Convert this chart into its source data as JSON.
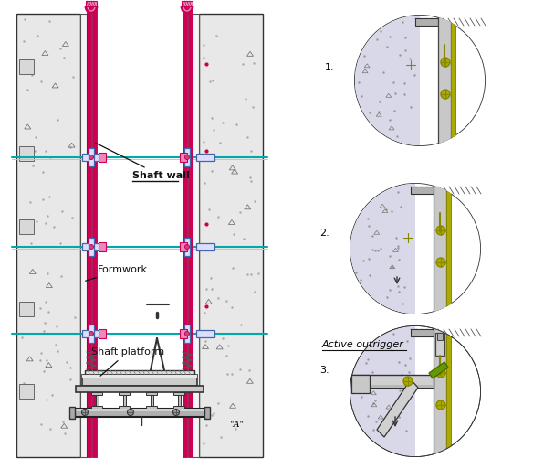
{
  "figsize": [
    5.84,
    5.13
  ],
  "dpi": 100,
  "bg_color": "#ffffff",
  "magenta": "#cc0055",
  "magenta_light": "#ee88bb",
  "cyan": "#00aaaa",
  "cyan_light": "#88dddd",
  "blue": "#4466cc",
  "pink_light": "#ffaacc",
  "green": "#669900",
  "gold": "#aaaa00",
  "gold_dark": "#888800",
  "gray_wall": "#e0e0e0",
  "gray_form": "#f0f0f0",
  "gray_dark": "#444444",
  "gray_med": "#888888",
  "gray_light": "#cccccc",
  "gray_platform": "#bbbbbb",
  "black": "#111111",
  "shaft_wall_label": "Shaft wall",
  "formwork_label": "Formwork",
  "shaft_platform_label": "Shaft platform",
  "active_outrigger_label": "Active outrigger",
  "label_A": "\"A\""
}
